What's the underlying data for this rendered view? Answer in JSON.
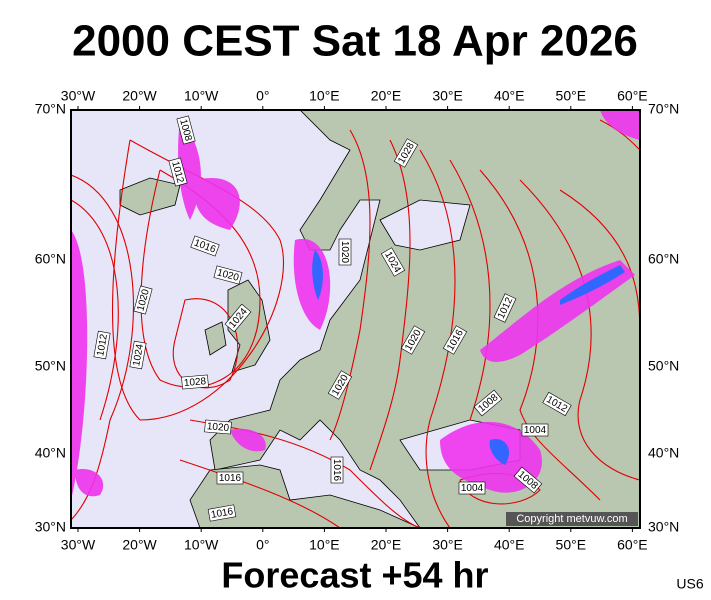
{
  "header": {
    "title": "2000 CEST Sat 18 Apr 2026"
  },
  "map": {
    "top_axis": [
      "30°W",
      "20°W",
      "10°W",
      "0°",
      "10°E",
      "20°E",
      "30°E",
      "40°E",
      "50°E",
      "60°E"
    ],
    "bottom_axis": [
      "30°W",
      "20°W",
      "10°W",
      "0°",
      "10°E",
      "20°E",
      "30°E",
      "40°E",
      "50°E",
      "60°E"
    ],
    "left_axis": [
      "70°N",
      "60°N",
      "50°N",
      "40°N",
      "30°N"
    ],
    "right_axis": [
      "70°N",
      "60°N",
      "50°N",
      "40°N",
      "30°N"
    ],
    "isobar_labels": [
      "1008",
      "1012",
      "1016",
      "1020",
      "1024",
      "1020",
      "1024",
      "1012",
      "1028",
      "1020",
      "1016",
      "1016",
      "1028",
      "1020",
      "1024",
      "1020",
      "1016",
      "1012",
      "1008",
      "1012",
      "1004",
      "1004",
      "1008",
      "1016",
      "1020"
    ],
    "copyright": "Copyright metvuw.com"
  },
  "footer": {
    "forecast": "Forecast +54 hr",
    "region": "US6"
  }
}
